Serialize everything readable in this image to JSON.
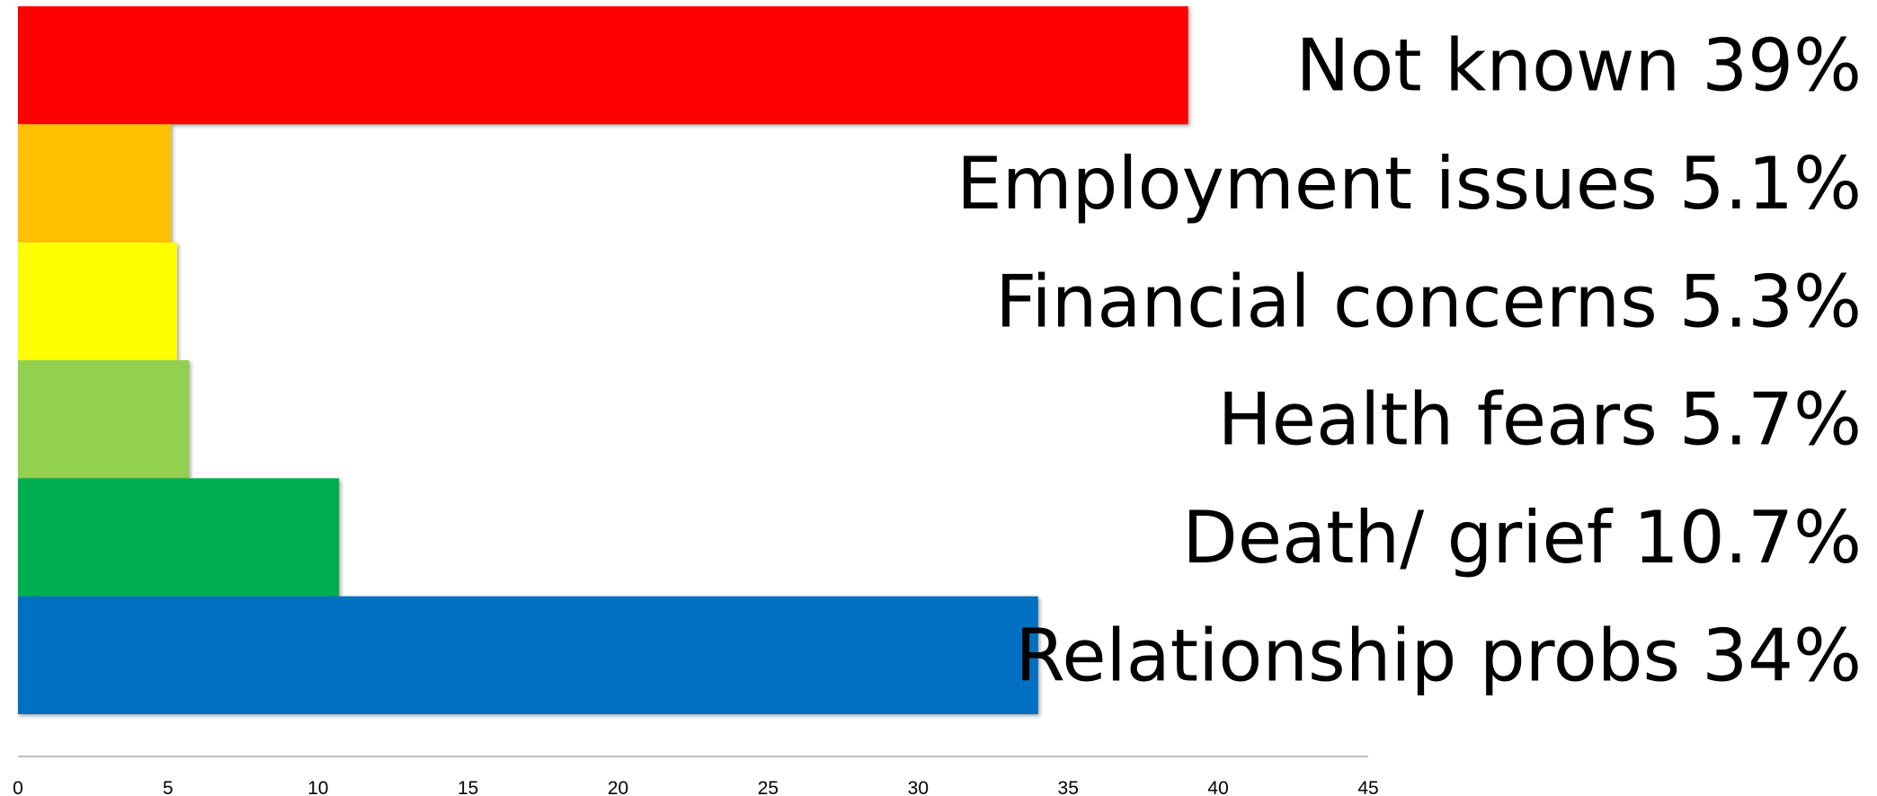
{
  "chart_data": {
    "type": "bar",
    "orientation": "horizontal",
    "categories": [
      "Not known",
      "Employment issues",
      "Financial concerns",
      "Health fears",
      "Death/ grief",
      "Relationship probs"
    ],
    "values": [
      39,
      5.1,
      5.3,
      5.7,
      10.7,
      34
    ],
    "value_labels": [
      "39%",
      "5.1%",
      "5.3%",
      "5.7%",
      "10.7%",
      "34%"
    ],
    "colors": [
      "#ff0000",
      "#ffc000",
      "#ffff00",
      "#92d050",
      "#00b050",
      "#0070c0"
    ],
    "xlim": [
      0,
      45
    ],
    "xticks": [
      0,
      5,
      10,
      15,
      20,
      25,
      30,
      35,
      40,
      45
    ],
    "grid": false
  }
}
